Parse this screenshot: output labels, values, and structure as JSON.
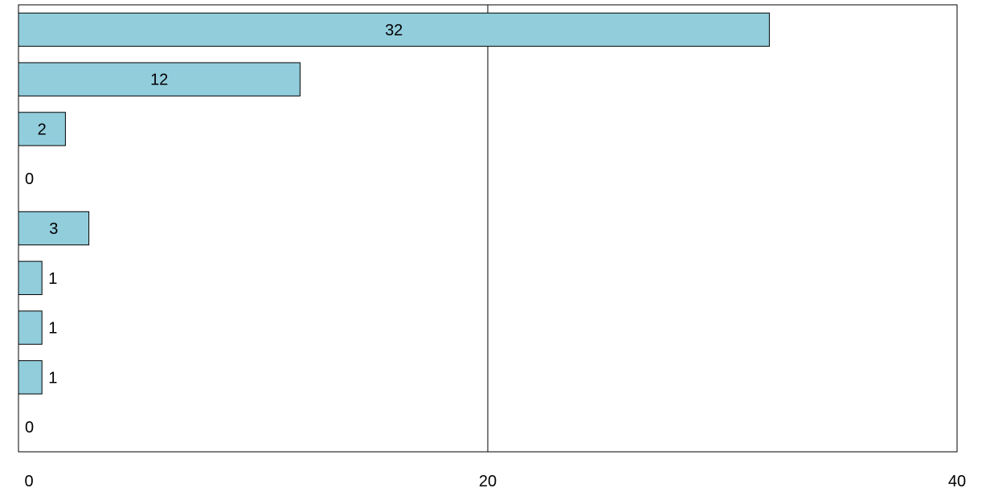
{
  "chart_data": {
    "type": "bar",
    "orientation": "horizontal",
    "values": [
      32,
      12,
      2,
      0,
      3,
      1,
      1,
      1,
      0
    ],
    "xlim": [
      0,
      40
    ],
    "x_ticks": [
      0,
      20,
      40
    ],
    "x_tick_labels": [
      "0",
      "20",
      "40"
    ],
    "grid": true,
    "legend": "none",
    "bar_color": "#92cddc",
    "bar_edge_color": "#000000"
  }
}
